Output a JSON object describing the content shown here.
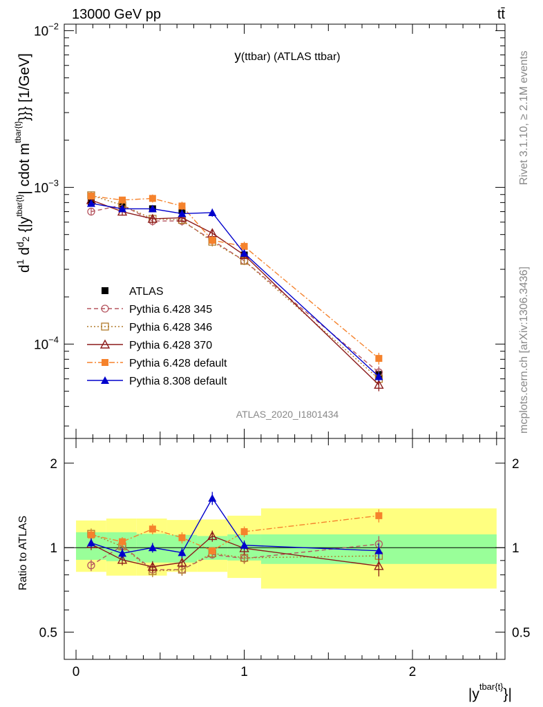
{
  "header": {
    "left": "13000 GeV pp",
    "right": "tt̄"
  },
  "side": {
    "rivet": "Rivet 3.1.10, ≥ 2.1M events",
    "mcplots": "mcplots.cern.ch [arXiv:1306.3436]"
  },
  "chart_data": [
    {
      "type": "line",
      "title": "y(ttbar) (ATLAS ttbar)",
      "title_main": "y",
      "title_sub": "(ttbar) (ATLAS ttbar)",
      "watermark": "ATLAS_2020_I1801434",
      "ylabel": "d¹⁄σ d²σᶠⁱᵈ⁄d²{|y^tbar{t}|} cdot m^tbar{t}}} [1/GeV]",
      "ylabel_text": "cdot m",
      "ylabel_tail": "}}} [1/GeV]",
      "ylabel_sup": "tbar{t}",
      "y_scale": "log",
      "ylim": [
        2.5e-05,
        0.011
      ],
      "xlim": [
        -0.07,
        2.55
      ],
      "y_ticks": [
        {
          "value": 0.01,
          "base": "10",
          "exp": "−2"
        },
        {
          "value": 0.001,
          "base": "10",
          "exp": "−3"
        },
        {
          "value": 0.0001,
          "base": "10",
          "exp": "−4"
        }
      ],
      "legend_position": "bottom-left",
      "x": [
        0.09,
        0.275,
        0.455,
        0.63,
        0.81,
        1.0,
        1.8
      ],
      "series": [
        {
          "name": "ATLAS",
          "color": "#000000",
          "marker": "filled-square",
          "line": "none",
          "values": [
            0.00081,
            0.00076,
            0.00073,
            0.00071,
            null,
            0.00037,
            6.4e-05
          ],
          "errors": [
            3e-05,
            3e-05,
            3e-05,
            3e-05,
            null,
            2e-05,
            4e-06
          ]
        },
        {
          "name": "Pythia 6.428 345",
          "color": "#b5555f",
          "marker": "open-circle",
          "line": "dashed",
          "values": [
            0.0007,
            0.00077,
            0.00061,
            0.00061,
            0.00046,
            0.00034,
            6.6e-05
          ],
          "errors": [
            4e-05,
            4e-05,
            4e-05,
            4e-05,
            3e-05,
            2e-05,
            6e-06
          ]
        },
        {
          "name": "Pythia 6.428 346",
          "color": "#b07a2a",
          "marker": "open-square",
          "line": "dotted",
          "values": [
            0.00089,
            0.00077,
            0.00063,
            0.00062,
            0.00045,
            0.00034,
            6e-05
          ],
          "errors": [
            5e-05,
            4e-05,
            4e-05,
            4e-05,
            3e-05,
            2e-05,
            6e-06
          ]
        },
        {
          "name": "Pythia 6.428 370",
          "color": "#8b1a1a",
          "marker": "open-triangle",
          "line": "solid",
          "values": [
            0.00083,
            0.0007,
            0.00063,
            0.00064,
            0.00051,
            0.00037,
            5.5e-05
          ],
          "errors": [
            4e-05,
            4e-05,
            4e-05,
            4e-05,
            3e-05,
            2e-05,
            5e-06
          ]
        },
        {
          "name": "Pythia 6.428 default",
          "color": "#f5822c",
          "marker": "filled-square",
          "line": "dashdot",
          "values": [
            0.00088,
            0.00083,
            0.00085,
            0.00076,
            0.00046,
            0.00042,
            8.1e-05
          ],
          "errors": [
            4e-05,
            4e-05,
            5e-05,
            5e-05,
            3e-05,
            3e-05,
            7e-06
          ]
        },
        {
          "name": "Pythia 8.308 default",
          "color": "#0000cc",
          "marker": "filled-triangle",
          "line": "solid",
          "values": [
            0.00079,
            0.00073,
            0.00073,
            0.00068,
            0.00069,
            0.00038,
            6.2e-05
          ],
          "errors": [
            3e-05,
            3e-05,
            3e-05,
            3e-05,
            4e-05,
            2e-05,
            4e-06
          ]
        }
      ]
    },
    {
      "type": "line",
      "ylabel": "Ratio to ATLAS",
      "xlabel_base": "|y",
      "xlabel_sup": "tbar{t}",
      "xlabel_tail": "}|",
      "xlim": [
        -0.07,
        2.55
      ],
      "ylim": [
        0.4,
        2.45
      ],
      "y_scale": "log",
      "x_ticks": [
        {
          "value": 0,
          "label": "0"
        },
        {
          "value": 1,
          "label": "1"
        },
        {
          "value": 2,
          "label": "2"
        }
      ],
      "y_ticks": [
        {
          "value": 2,
          "label": "2"
        },
        {
          "value": 1,
          "label": "1"
        },
        {
          "value": 0.5,
          "label": "0.5"
        }
      ],
      "bands": [
        {
          "x_range": [
            0,
            0.18
          ],
          "green": [
            0.905,
            1.135
          ],
          "yellow": [
            0.82,
            1.25
          ]
        },
        {
          "x_range": [
            0.18,
            0.36
          ],
          "green": [
            0.895,
            1.135
          ],
          "yellow": [
            0.795,
            1.27
          ]
        },
        {
          "x_range": [
            0.36,
            0.54
          ],
          "green": [
            0.885,
            1.12
          ],
          "yellow": [
            0.795,
            1.27
          ]
        },
        {
          "x_range": [
            0.54,
            0.72
          ],
          "green": [
            0.885,
            1.11
          ],
          "yellow": [
            0.82,
            1.255
          ]
        },
        {
          "x_range": [
            0.72,
            0.9
          ],
          "green": [
            0.905,
            1.1
          ],
          "yellow": [
            0.82,
            1.26
          ]
        },
        {
          "x_range": [
            0.9,
            1.1
          ],
          "green": [
            0.9,
            1.115
          ],
          "yellow": [
            0.78,
            1.3
          ]
        },
        {
          "x_range": [
            1.1,
            2.5
          ],
          "green": [
            0.875,
            1.115
          ],
          "yellow": [
            0.715,
            1.38
          ]
        }
      ],
      "series": [
        {
          "name": "Pythia 6.428 345",
          "values": [
            0.865,
            1.015,
            0.835,
            0.835,
            0.945,
            0.915,
            1.03
          ],
          "errors": [
            0.04,
            0.04,
            0.04,
            0.04,
            0.03,
            0.04,
            0.07
          ]
        },
        {
          "name": "Pythia 6.428 346",
          "values": [
            1.12,
            1.01,
            0.825,
            0.835,
            0.955,
            0.92,
            0.935
          ],
          "errors": [
            0.05,
            0.04,
            0.04,
            0.04,
            0.03,
            0.04,
            0.07
          ]
        },
        {
          "name": "Pythia 6.428 370",
          "values": [
            1.03,
            0.905,
            0.855,
            0.885,
            1.1,
            0.995,
            0.86
          ],
          "errors": [
            0.05,
            0.04,
            0.04,
            0.04,
            0.05,
            0.05,
            0.07
          ]
        },
        {
          "name": "Pythia 6.428 default",
          "values": [
            1.11,
            1.05,
            1.165,
            1.085,
            0.975,
            1.14,
            1.3
          ],
          "errors": [
            0.05,
            0.04,
            0.05,
            0.05,
            0.03,
            0.05,
            0.07
          ]
        },
        {
          "name": "Pythia 8.308 default",
          "values": [
            1.04,
            0.955,
            1.0,
            0.96,
            1.5,
            1.02,
            0.975
          ],
          "errors": [
            0.04,
            0.04,
            0.04,
            0.04,
            0.08,
            0.04,
            0.06
          ]
        }
      ]
    }
  ]
}
